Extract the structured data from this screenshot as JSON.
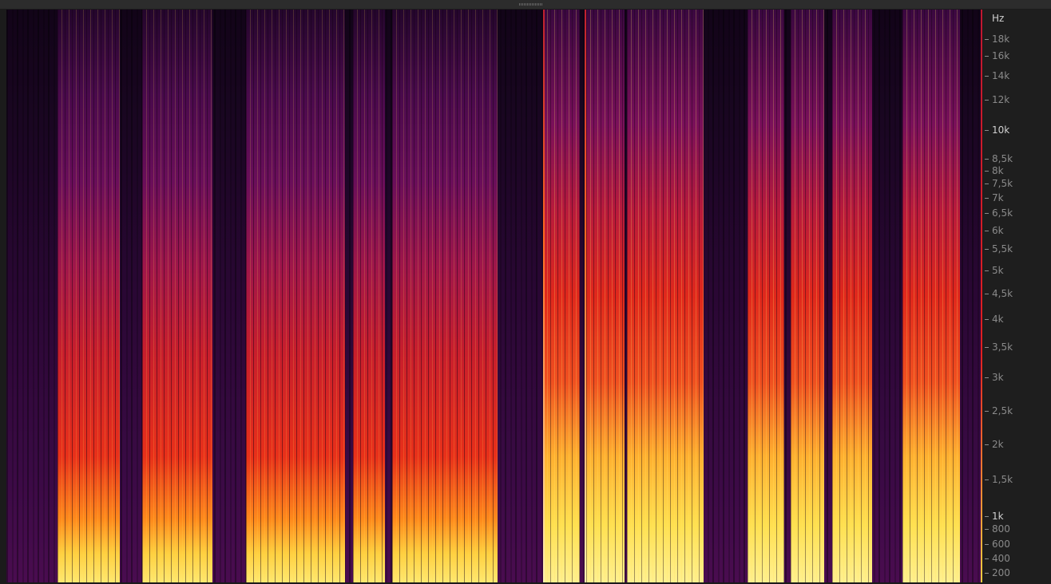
{
  "frequency_axis": {
    "unit": "Hz",
    "labels": [
      "18k",
      "16k",
      "14k",
      "12k",
      "10k",
      "8,5k",
      "8k",
      "7,5k",
      "7k",
      "6,5k",
      "6k",
      "5,5k",
      "5k",
      "4,5k",
      "4k",
      "3,5k",
      "3k",
      "2,5k",
      "2k",
      "1,5k",
      "1k",
      "800",
      "600",
      "400",
      "200"
    ]
  }
}
